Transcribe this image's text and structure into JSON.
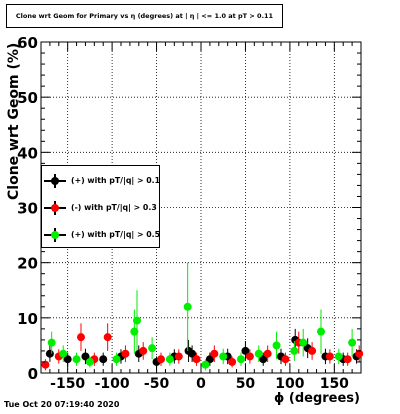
{
  "title": "Clone wrt Geom for Primary vs η (degrees) at | η | <= 1.0 at pT > 0.11",
  "timestamp": "Tue Oct 20 07:19:40 2020",
  "chart_data": {
    "type": "scatter",
    "xlabel": "ϕ (degrees)",
    "ylabel": "Clone wrt Geom (%)",
    "xlim": [
      -180,
      180
    ],
    "ylim": [
      0,
      60
    ],
    "x_ticks": [
      -150,
      -100,
      -50,
      0,
      50,
      100,
      150
    ],
    "y_ticks": [
      0,
      10,
      20,
      30,
      40,
      50,
      60
    ],
    "grid": true,
    "legend_position": "left-middle",
    "series": [
      {
        "name": "(+) with pT/|q| > 0.1",
        "color": "#000000",
        "x": [
          -170,
          -150,
          -130,
          -110,
          -90,
          -70,
          -50,
          -30,
          -14,
          -10,
          10,
          30,
          50,
          70,
          90,
          106,
          120,
          140,
          160,
          175
        ],
        "y": [
          3.5,
          2.5,
          3.0,
          2.5,
          3.0,
          3.5,
          2.0,
          3.0,
          4.0,
          3.5,
          2.5,
          3.0,
          4.0,
          2.5,
          3.0,
          6.0,
          4.5,
          3.0,
          2.5,
          3.0
        ],
        "err": [
          1.5,
          1.2,
          1.4,
          1.2,
          1.3,
          1.5,
          1.0,
          1.3,
          2.0,
          1.5,
          1.2,
          1.4,
          1.8,
          1.2,
          1.4,
          2.0,
          1.8,
          1.4,
          1.2,
          1.3
        ]
      },
      {
        "name": "(-) with pT/|q| > 0.3",
        "color": "#ff0000",
        "x": [
          -175,
          -160,
          -135,
          -120,
          -105,
          -85,
          -65,
          -45,
          -25,
          -5,
          15,
          35,
          55,
          75,
          95,
          110,
          125,
          145,
          165,
          178
        ],
        "y": [
          1.5,
          3.0,
          6.5,
          2.5,
          6.5,
          3.5,
          4.0,
          2.5,
          3.0,
          2.5,
          3.5,
          2.0,
          3.0,
          3.5,
          2.5,
          5.5,
          4.0,
          3.0,
          2.5,
          3.5
        ],
        "err": [
          1.0,
          1.3,
          2.5,
          1.2,
          2.5,
          1.5,
          1.6,
          1.2,
          1.3,
          1.2,
          1.5,
          1.0,
          1.3,
          1.5,
          1.2,
          2.0,
          1.6,
          1.3,
          1.2,
          1.5
        ]
      },
      {
        "name": "(+) with pT/|q| > 0.5",
        "color": "#00ee00",
        "x": [
          -168,
          -155,
          -140,
          -125,
          -95,
          -75,
          -72,
          -55,
          -35,
          -15,
          5,
          25,
          45,
          65,
          85,
          105,
          115,
          135,
          155,
          170
        ],
        "y": [
          5.5,
          3.5,
          2.5,
          2.0,
          2.5,
          7.5,
          9.5,
          4.5,
          2.5,
          12.0,
          1.5,
          3.0,
          2.5,
          3.5,
          5.0,
          4.0,
          5.5,
          7.5,
          3.0,
          5.5
        ],
        "err": [
          2.0,
          1.5,
          1.2,
          1.0,
          1.2,
          4.0,
          5.5,
          2.0,
          1.2,
          8.0,
          1.0,
          1.4,
          1.2,
          1.5,
          2.5,
          1.8,
          2.5,
          4.0,
          1.4,
          2.5
        ]
      }
    ]
  }
}
